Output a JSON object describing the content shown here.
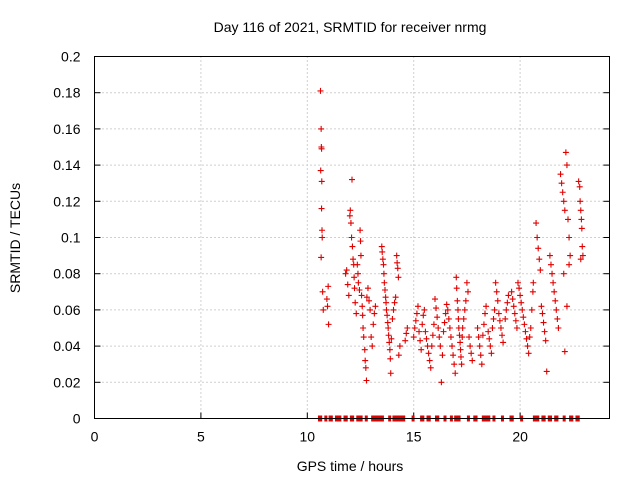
{
  "chart_data": {
    "type": "scatter",
    "title": "Day 116 of 2021, SRMTID for receiver nrmg",
    "xlabel": "GPS time / hours",
    "ylabel": "SRMTID / TECUs",
    "xlim": [
      0,
      24.2
    ],
    "ylim": [
      0,
      0.2
    ],
    "x_ticks": [
      0,
      5,
      10,
      15,
      20
    ],
    "x_tick_labels": [
      "0",
      "5",
      "10",
      "15",
      "20"
    ],
    "y_ticks": [
      0,
      0.02,
      0.04,
      0.06,
      0.08,
      0.1,
      0.12,
      0.14,
      0.16,
      0.18,
      0.2
    ],
    "y_tick_labels": [
      "0",
      "0.02",
      "0.04",
      "0.06",
      "0.08",
      "0.1",
      "0.12",
      "0.14",
      "0.16",
      "0.18",
      "0.2"
    ],
    "grid": true,
    "marker": "plus",
    "color": "#e00000",
    "series": [
      {
        "name": "SRMTID",
        "points": [
          [
            10.62,
            0.181
          ],
          [
            10.65,
            0.16
          ],
          [
            10.66,
            0.15
          ],
          [
            10.67,
            0.149
          ],
          [
            10.63,
            0.137
          ],
          [
            10.68,
            0.131
          ],
          [
            10.67,
            0.116
          ],
          [
            10.69,
            0.104
          ],
          [
            10.7,
            0.1
          ],
          [
            10.65,
            0.089
          ],
          [
            10.72,
            0.07
          ],
          [
            10.75,
            0.06
          ],
          [
            10.92,
            0.066
          ],
          [
            10.95,
            0.062
          ],
          [
            10.98,
            0.073
          ],
          [
            11.0,
            0.052
          ],
          [
            11.8,
            0.08
          ],
          [
            11.85,
            0.082
          ],
          [
            11.9,
            0.074
          ],
          [
            11.95,
            0.068
          ],
          [
            12.0,
            0.112
          ],
          [
            12.02,
            0.115
          ],
          [
            12.05,
            0.108
          ],
          [
            12.08,
            0.1
          ],
          [
            12.1,
            0.132
          ],
          [
            12.12,
            0.095
          ],
          [
            12.15,
            0.088
          ],
          [
            12.18,
            0.085
          ],
          [
            12.2,
            0.078
          ],
          [
            12.22,
            0.072
          ],
          [
            12.25,
            0.064
          ],
          [
            12.3,
            0.058
          ],
          [
            12.35,
            0.085
          ],
          [
            12.38,
            0.08
          ],
          [
            12.4,
            0.075
          ],
          [
            12.45,
            0.071
          ],
          [
            12.48,
            0.104
          ],
          [
            12.5,
            0.098
          ],
          [
            12.52,
            0.09
          ],
          [
            12.55,
            0.068
          ],
          [
            12.58,
            0.062
          ],
          [
            12.6,
            0.057
          ],
          [
            12.62,
            0.05
          ],
          [
            12.65,
            0.045
          ],
          [
            12.7,
            0.038
          ],
          [
            12.72,
            0.032
          ],
          [
            12.75,
            0.028
          ],
          [
            12.78,
            0.021
          ],
          [
            12.8,
            0.067
          ],
          [
            12.85,
            0.072
          ],
          [
            12.9,
            0.065
          ],
          [
            12.95,
            0.06
          ],
          [
            13.0,
            0.045
          ],
          [
            13.05,
            0.04
          ],
          [
            13.1,
            0.052
          ],
          [
            13.15,
            0.058
          ],
          [
            13.2,
            0.062
          ],
          [
            13.5,
            0.095
          ],
          [
            13.52,
            0.092
          ],
          [
            13.55,
            0.088
          ],
          [
            13.58,
            0.085
          ],
          [
            13.6,
            0.08
          ],
          [
            13.62,
            0.075
          ],
          [
            13.65,
            0.071
          ],
          [
            13.68,
            0.067
          ],
          [
            13.7,
            0.064
          ],
          [
            13.72,
            0.06
          ],
          [
            13.75,
            0.057
          ],
          [
            13.78,
            0.053
          ],
          [
            13.8,
            0.05
          ],
          [
            13.82,
            0.046
          ],
          [
            13.85,
            0.042
          ],
          [
            13.88,
            0.038
          ],
          [
            13.9,
            0.033
          ],
          [
            13.92,
            0.025
          ],
          [
            13.95,
            0.044
          ],
          [
            14.0,
            0.055
          ],
          [
            14.05,
            0.06
          ],
          [
            14.1,
            0.064
          ],
          [
            14.15,
            0.067
          ],
          [
            14.2,
            0.09
          ],
          [
            14.22,
            0.086
          ],
          [
            14.25,
            0.083
          ],
          [
            14.28,
            0.078
          ],
          [
            14.3,
            0.035
          ],
          [
            14.35,
            0.04
          ],
          [
            14.6,
            0.043
          ],
          [
            14.65,
            0.047
          ],
          [
            14.7,
            0.05
          ],
          [
            15.0,
            0.045
          ],
          [
            15.05,
            0.05
          ],
          [
            15.1,
            0.054
          ],
          [
            15.15,
            0.058
          ],
          [
            15.2,
            0.062
          ],
          [
            15.25,
            0.048
          ],
          [
            15.3,
            0.043
          ],
          [
            15.35,
            0.038
          ],
          [
            15.4,
            0.052
          ],
          [
            15.45,
            0.057
          ],
          [
            15.5,
            0.06
          ],
          [
            15.55,
            0.048
          ],
          [
            15.6,
            0.044
          ],
          [
            15.65,
            0.04
          ],
          [
            15.7,
            0.036
          ],
          [
            15.75,
            0.032
          ],
          [
            15.8,
            0.028
          ],
          [
            15.85,
            0.04
          ],
          [
            15.9,
            0.046
          ],
          [
            15.95,
            0.052
          ],
          [
            16.0,
            0.066
          ],
          [
            16.05,
            0.061
          ],
          [
            16.1,
            0.056
          ],
          [
            16.15,
            0.05
          ],
          [
            16.2,
            0.045
          ],
          [
            16.25,
            0.04
          ],
          [
            16.3,
            0.02
          ],
          [
            16.35,
            0.035
          ],
          [
            16.4,
            0.048
          ],
          [
            16.45,
            0.053
          ],
          [
            16.5,
            0.058
          ],
          [
            16.55,
            0.063
          ],
          [
            16.6,
            0.06
          ],
          [
            16.65,
            0.055
          ],
          [
            16.7,
            0.05
          ],
          [
            16.75,
            0.045
          ],
          [
            16.8,
            0.04
          ],
          [
            16.85,
            0.035
          ],
          [
            16.9,
            0.03
          ],
          [
            16.95,
            0.025
          ],
          [
            17.0,
            0.078
          ],
          [
            17.02,
            0.072
          ],
          [
            17.05,
            0.065
          ],
          [
            17.08,
            0.06
          ],
          [
            17.1,
            0.055
          ],
          [
            17.12,
            0.05
          ],
          [
            17.15,
            0.046
          ],
          [
            17.18,
            0.042
          ],
          [
            17.2,
            0.038
          ],
          [
            17.22,
            0.034
          ],
          [
            17.25,
            0.03
          ],
          [
            17.28,
            0.045
          ],
          [
            17.3,
            0.05
          ],
          [
            17.35,
            0.055
          ],
          [
            17.4,
            0.06
          ],
          [
            17.45,
            0.065
          ],
          [
            17.5,
            0.075
          ],
          [
            17.55,
            0.07
          ],
          [
            17.6,
            0.045
          ],
          [
            17.65,
            0.04
          ],
          [
            17.7,
            0.036
          ],
          [
            17.75,
            0.032
          ],
          [
            18.0,
            0.05
          ],
          [
            18.05,
            0.045
          ],
          [
            18.1,
            0.04
          ],
          [
            18.15,
            0.035
          ],
          [
            18.2,
            0.03
          ],
          [
            18.25,
            0.046
          ],
          [
            18.3,
            0.052
          ],
          [
            18.35,
            0.058
          ],
          [
            18.4,
            0.062
          ],
          [
            18.5,
            0.048
          ],
          [
            18.55,
            0.044
          ],
          [
            18.6,
            0.04
          ],
          [
            18.65,
            0.036
          ],
          [
            18.7,
            0.05
          ],
          [
            18.75,
            0.055
          ],
          [
            18.8,
            0.06
          ],
          [
            18.85,
            0.075
          ],
          [
            18.9,
            0.07
          ],
          [
            18.95,
            0.065
          ],
          [
            19.0,
            0.058
          ],
          [
            19.05,
            0.054
          ],
          [
            19.1,
            0.05
          ],
          [
            19.15,
            0.046
          ],
          [
            19.2,
            0.042
          ],
          [
            19.3,
            0.055
          ],
          [
            19.35,
            0.06
          ],
          [
            19.4,
            0.064
          ],
          [
            19.45,
            0.068
          ],
          [
            19.6,
            0.07
          ],
          [
            19.65,
            0.066
          ],
          [
            19.7,
            0.062
          ],
          [
            19.75,
            0.058
          ],
          [
            19.8,
            0.054
          ],
          [
            19.85,
            0.05
          ],
          [
            19.9,
            0.075
          ],
          [
            19.95,
            0.072
          ],
          [
            20.0,
            0.068
          ],
          [
            20.05,
            0.064
          ],
          [
            20.1,
            0.06
          ],
          [
            20.15,
            0.056
          ],
          [
            20.2,
            0.052
          ],
          [
            20.25,
            0.048
          ],
          [
            20.3,
            0.044
          ],
          [
            20.35,
            0.04
          ],
          [
            20.4,
            0.036
          ],
          [
            20.45,
            0.045
          ],
          [
            20.5,
            0.05
          ],
          [
            20.55,
            0.06
          ],
          [
            20.6,
            0.07
          ],
          [
            20.62,
            0.075
          ],
          [
            20.75,
            0.108
          ],
          [
            20.8,
            0.1
          ],
          [
            20.85,
            0.094
          ],
          [
            20.9,
            0.088
          ],
          [
            20.95,
            0.082
          ],
          [
            21.0,
            0.062
          ],
          [
            21.05,
            0.058
          ],
          [
            21.1,
            0.053
          ],
          [
            21.15,
            0.048
          ],
          [
            21.2,
            0.043
          ],
          [
            21.25,
            0.026
          ],
          [
            21.4,
            0.09
          ],
          [
            21.45,
            0.085
          ],
          [
            21.5,
            0.08
          ],
          [
            21.55,
            0.075
          ],
          [
            21.6,
            0.07
          ],
          [
            21.65,
            0.065
          ],
          [
            21.7,
            0.06
          ],
          [
            21.75,
            0.055
          ],
          [
            21.8,
            0.05
          ],
          [
            21.9,
            0.135
          ],
          [
            21.95,
            0.13
          ],
          [
            22.0,
            0.125
          ],
          [
            22.05,
            0.12
          ],
          [
            22.1,
            0.115
          ],
          [
            22.15,
            0.147
          ],
          [
            22.2,
            0.14
          ],
          [
            22.25,
            0.11
          ],
          [
            22.3,
            0.1
          ],
          [
            22.35,
            0.09
          ],
          [
            22.05,
            0.08
          ],
          [
            22.1,
            0.037
          ],
          [
            22.2,
            0.062
          ],
          [
            22.3,
            0.085
          ],
          [
            22.75,
            0.131
          ],
          [
            22.8,
            0.128
          ],
          [
            22.82,
            0.12
          ],
          [
            22.85,
            0.115
          ],
          [
            22.88,
            0.11
          ],
          [
            22.9,
            0.105
          ],
          [
            22.92,
            0.095
          ],
          [
            22.95,
            0.09
          ],
          [
            22.85,
            0.088
          ]
        ]
      },
      {
        "name": "zero-values",
        "x_segments": [
          [
            10.5,
            10.7
          ],
          [
            10.8,
            10.9
          ],
          [
            11.0,
            11.2
          ],
          [
            11.3,
            11.6
          ],
          [
            11.7,
            11.9
          ],
          [
            12.0,
            12.2
          ],
          [
            12.3,
            12.6
          ],
          [
            12.7,
            12.8
          ],
          [
            13.0,
            13.6
          ],
          [
            13.8,
            13.9
          ],
          [
            14.0,
            14.6
          ],
          [
            14.9,
            15.0
          ],
          [
            15.3,
            15.5
          ],
          [
            15.6,
            15.8
          ],
          [
            16.0,
            16.2
          ],
          [
            16.4,
            16.5
          ],
          [
            16.7,
            16.8
          ],
          [
            16.9,
            17.2
          ],
          [
            17.5,
            17.6
          ],
          [
            17.8,
            18.0
          ],
          [
            18.2,
            18.6
          ],
          [
            18.7,
            18.8
          ],
          [
            19.1,
            19.2
          ],
          [
            19.5,
            19.7
          ],
          [
            20.0,
            20.1
          ],
          [
            20.6,
            20.9
          ],
          [
            21.0,
            21.2
          ],
          [
            21.3,
            21.5
          ],
          [
            21.6,
            21.8
          ],
          [
            22.0,
            22.1
          ],
          [
            22.3,
            22.5
          ],
          [
            22.6,
            22.8
          ]
        ]
      }
    ]
  }
}
